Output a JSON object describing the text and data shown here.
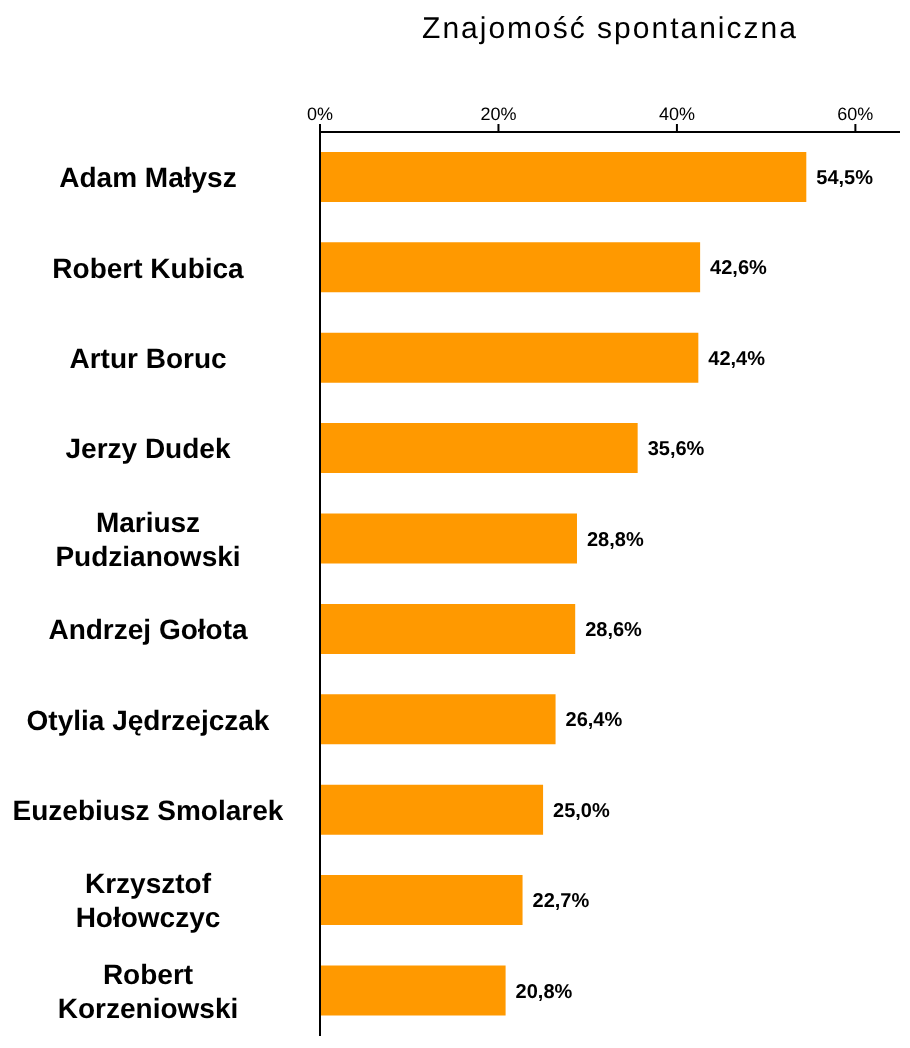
{
  "chart_data": {
    "type": "bar",
    "orientation": "horizontal",
    "title": "Znajomość spontaniczna",
    "categories": [
      "Adam Małysz",
      "Robert Kubica",
      "Artur Boruc",
      "Jerzy Dudek",
      "Mariusz Pudzianowski",
      "Andrzej Gołota",
      "Otylia Jędrzejczak",
      "Euzebiusz Smolarek",
      "Krzysztof Hołowczyc",
      "Robert Korzeniowski"
    ],
    "values": [
      54.5,
      42.6,
      42.4,
      35.6,
      28.8,
      28.6,
      26.4,
      25.0,
      22.7,
      20.8
    ],
    "value_labels": [
      "54,5%",
      "42,6%",
      "42,4%",
      "35,6%",
      "28,8%",
      "28,6%",
      "26,4%",
      "25,0%",
      "22,7%",
      "20,8%"
    ],
    "color": "#ff9900",
    "xlim": [
      0,
      65
    ],
    "xticks": [
      {
        "value": 0,
        "label": "0%"
      },
      {
        "value": 20,
        "label": "20%"
      },
      {
        "value": 40,
        "label": "40%"
      },
      {
        "value": 60,
        "label": "60%"
      }
    ],
    "grid": false,
    "legend": false
  }
}
